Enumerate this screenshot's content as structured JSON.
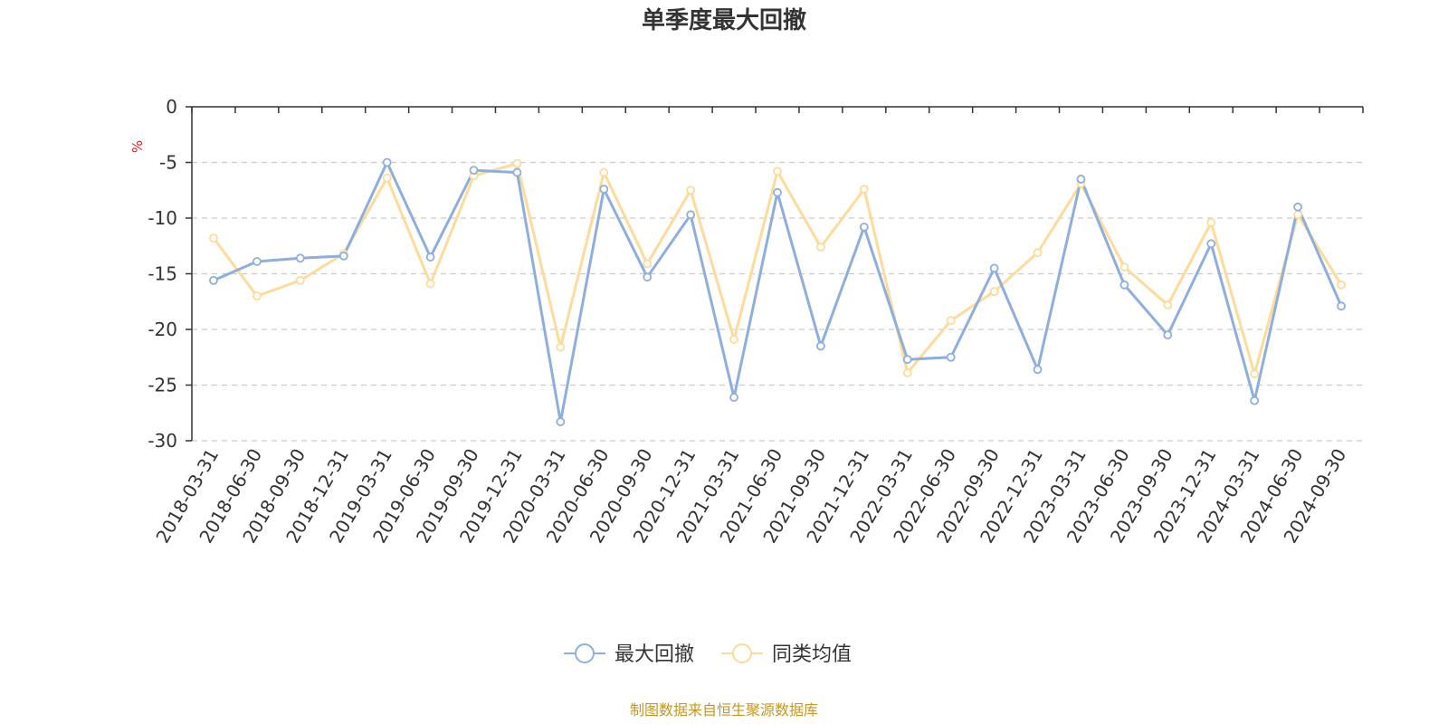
{
  "chart_data": {
    "type": "line",
    "title": "单季度最大回撤",
    "ylabel": "%",
    "ylim": [
      -30,
      0
    ],
    "yticks": [
      0,
      -5,
      -10,
      -15,
      -20,
      -25,
      -30
    ],
    "grid": true,
    "legend_position": "bottom",
    "categories": [
      "2018-03-31",
      "2018-06-30",
      "2018-09-30",
      "2018-12-31",
      "2019-03-31",
      "2019-06-30",
      "2019-09-30",
      "2019-12-31",
      "2020-03-31",
      "2020-06-30",
      "2020-09-30",
      "2020-12-31",
      "2021-03-31",
      "2021-06-30",
      "2021-09-30",
      "2021-12-31",
      "2022-03-31",
      "2022-06-30",
      "2022-09-30",
      "2022-12-31",
      "2023-03-31",
      "2023-06-30",
      "2023-09-30",
      "2023-12-31",
      "2024-03-31",
      "2024-06-30",
      "2024-09-30"
    ],
    "series": [
      {
        "name": "最大回撤",
        "color": "#8eaedb",
        "values": [
          -15.6,
          -13.9,
          -13.6,
          -13.4,
          -5.0,
          -13.5,
          -5.7,
          -5.9,
          -28.3,
          -7.4,
          -15.3,
          -9.7,
          -26.1,
          -7.7,
          -21.5,
          -10.8,
          -22.7,
          -22.5,
          -14.5,
          -23.6,
          -6.5,
          -16.0,
          -20.5,
          -12.3,
          -26.4,
          -9.0,
          -17.9
        ]
      },
      {
        "name": "同类均值",
        "color": "#fddb9a",
        "values": [
          -11.8,
          -17.0,
          -15.6,
          -13.2,
          -6.4,
          -15.9,
          -6.2,
          -5.1,
          -21.6,
          -5.9,
          -14.1,
          -7.5,
          -20.9,
          -5.8,
          -12.6,
          -7.4,
          -23.9,
          -19.2,
          -16.6,
          -13.1,
          -6.9,
          -14.4,
          -17.8,
          -10.4,
          -24.0,
          -9.7,
          -16.0
        ]
      }
    ]
  },
  "source_text": "制图数据来自恒生聚源数据库"
}
